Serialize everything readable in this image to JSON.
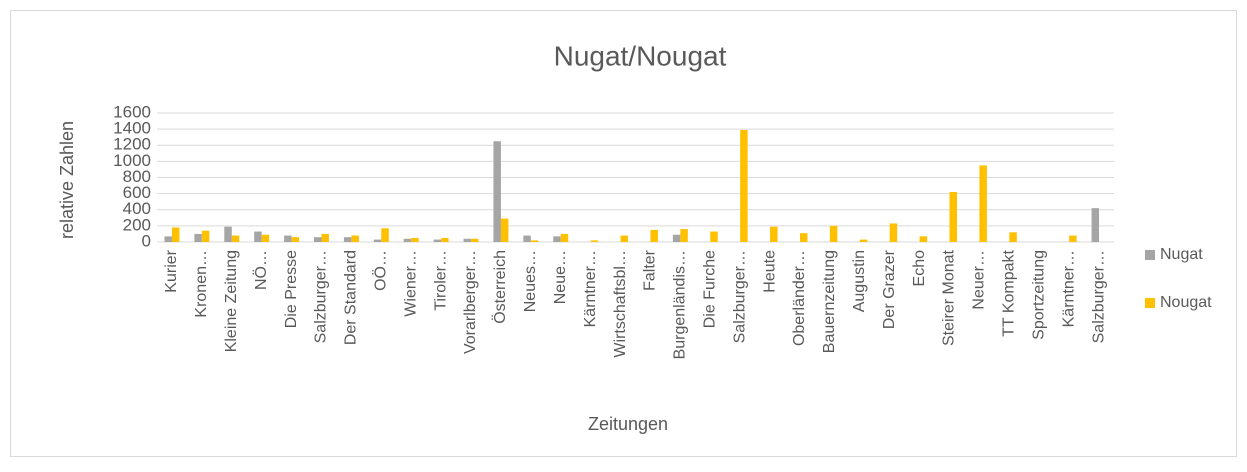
{
  "chart_data": {
    "type": "bar",
    "title": "Nugat/Nougat",
    "x_label": "Zeitungen",
    "y_label": "relative Zahlen",
    "categories": [
      "Kurier",
      "Kronen…",
      "Kleine Zeitung",
      "NÖ…",
      "Die Presse",
      "Salzburger…",
      "Der Standard",
      "OÖ…",
      "Wiener…",
      "Tiroler…",
      "Vorarlberger…",
      "Österreich",
      "Neues…",
      "Neue…",
      "Kärntner…",
      "Wirtschaftsbl…",
      "Falter",
      "Burgenländis…",
      "Die Furche",
      "Salzburger…",
      "Heute",
      "Oberländer…",
      "Bauernzeitung",
      "Augustin",
      "Der Grazer",
      "Echo",
      "Steirer Monat",
      "Neuer…",
      "TT Kompakt",
      "Sportzeitung",
      "Kärntner…",
      "Salzburger…"
    ],
    "series": [
      {
        "name": "Nugat",
        "color": "#a5a5a5",
        "values": [
          70,
          100,
          190,
          130,
          80,
          60,
          60,
          30,
          40,
          30,
          40,
          1250,
          80,
          70,
          0,
          0,
          0,
          90,
          0,
          0,
          0,
          0,
          0,
          0,
          0,
          0,
          0,
          0,
          0,
          0,
          0,
          420
        ]
      },
      {
        "name": "Nougat",
        "color": "#ffc000",
        "values": [
          180,
          140,
          80,
          90,
          60,
          100,
          80,
          170,
          50,
          50,
          40,
          290,
          20,
          100,
          20,
          80,
          150,
          160,
          130,
          1390,
          190,
          110,
          200,
          30,
          230,
          70,
          620,
          950,
          120,
          0,
          80,
          0
        ]
      }
    ],
    "ylim": [
      0,
      1600
    ],
    "yticks": [
      0,
      200,
      400,
      600,
      800,
      1000,
      1200,
      1400,
      1600
    ],
    "grid": true,
    "legend": "right"
  }
}
